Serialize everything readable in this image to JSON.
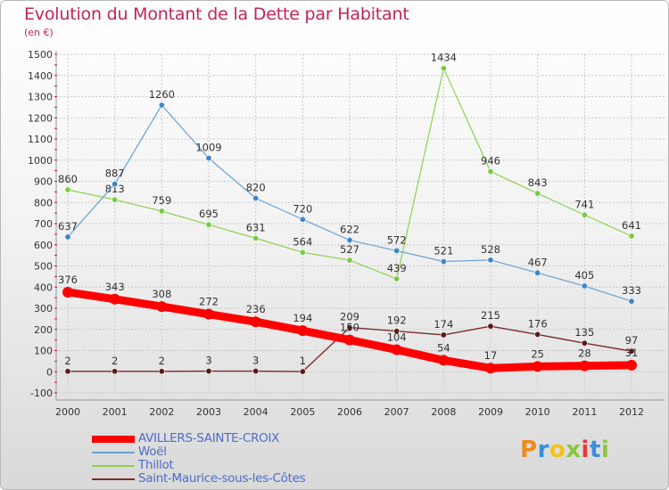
{
  "header": {
    "title": "Evolution du Montant de la Dette par Habitant",
    "unit": "(en €)"
  },
  "brand": {
    "letters": [
      "P",
      "r",
      "o",
      "x",
      "i",
      "t",
      "i"
    ],
    "colors": [
      "#f08a1c",
      "#3a8fd6",
      "#f2c318",
      "#8cc63f",
      "#e23c3c",
      "#3a8fd6",
      "#8cc63f"
    ]
  },
  "chart_data": {
    "type": "line",
    "title": "Evolution du Montant de la Dette par Habitant",
    "subtitle": "(en €)",
    "xlabel": "",
    "ylabel": "",
    "categories": [
      "2000",
      "2001",
      "2002",
      "2003",
      "2004",
      "2005",
      "2006",
      "2007",
      "2008",
      "2009",
      "2010",
      "2011",
      "2012"
    ],
    "ylim": [
      -100,
      1500
    ],
    "yticks": [
      "-100",
      "0",
      "100",
      "200",
      "300",
      "400",
      "500",
      "600",
      "700",
      "800",
      "900",
      "1000",
      "1100",
      "1200",
      "1300",
      "1400",
      "1500"
    ],
    "grid": true,
    "legend_position": "bottom-left",
    "series": [
      {
        "name": "Saint-Maurice-sous-les-Côtes",
        "color": "#7a2b2b",
        "marker": "#5a1a1a",
        "values": [
          2,
          2,
          2,
          3,
          3,
          1,
          209,
          192,
          174,
          215,
          176,
          135,
          97
        ],
        "labels": [
          "2",
          "2",
          "2",
          "3",
          "3",
          "1",
          "209",
          "192",
          "174",
          "215",
          "176",
          "135",
          "97"
        ]
      },
      {
        "name": "Thillot",
        "color": "#8fd14f",
        "marker": "#7ac943",
        "values": [
          860,
          813,
          759,
          695,
          631,
          564,
          527,
          439,
          1434,
          946,
          843,
          741,
          641
        ],
        "labels": [
          "860",
          "813",
          "759",
          "695",
          "631",
          "564",
          "527",
          "439",
          "1434",
          "946",
          "843",
          "741",
          "641"
        ]
      },
      {
        "name": "Woël",
        "color": "#6a9fd4",
        "marker": "#3d85c6",
        "values": [
          637,
          887,
          1260,
          1009,
          820,
          720,
          622,
          572,
          521,
          528,
          467,
          405,
          333
        ],
        "labels": [
          "637",
          "887",
          "1260",
          "1009",
          "820",
          "720",
          "622",
          "572",
          "521",
          "528",
          "467",
          "405",
          "333"
        ]
      },
      {
        "name": "AVILLERS-SAINTE-CROIX",
        "color": "#ff0000",
        "marker": "#ff0000",
        "values": [
          376,
          343,
          308,
          272,
          236,
          194,
          150,
          104,
          54,
          17,
          25,
          28,
          31
        ],
        "labels": [
          "376",
          "343",
          "308",
          "272",
          "236",
          "194",
          "150",
          "104",
          "54",
          "17",
          "25",
          "28",
          "31"
        ]
      }
    ],
    "legend": [
      "AVILLERS-SAINTE-CROIX",
      "Woël",
      "Thillot",
      "Saint-Maurice-sous-les-Côtes"
    ]
  }
}
